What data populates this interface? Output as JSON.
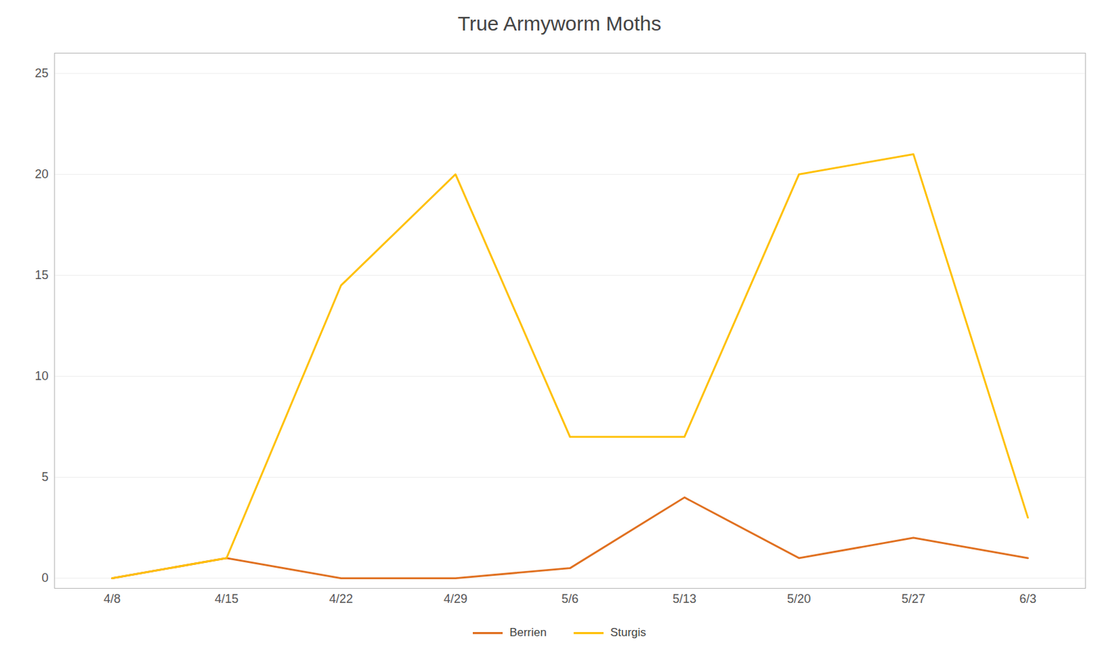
{
  "chart_data": {
    "type": "line",
    "title": "True Armyworm Moths",
    "categories": [
      "4/8",
      "4/15",
      "4/22",
      "4/29",
      "5/6",
      "5/13",
      "5/20",
      "5/27",
      "6/3"
    ],
    "series": [
      {
        "name": "Berrien",
        "color": "#E07020",
        "values": [
          0,
          1,
          0,
          0,
          0.5,
          4,
          1,
          2,
          1
        ]
      },
      {
        "name": "Sturgis",
        "color": "#FFC000",
        "values": [
          0,
          1,
          14.5,
          20,
          7,
          7,
          20,
          21,
          3
        ]
      }
    ],
    "ylim": [
      -0.5,
      26
    ],
    "yticks": [
      0,
      5,
      10,
      15,
      20,
      25
    ],
    "grid": true,
    "legend": "bottom"
  }
}
